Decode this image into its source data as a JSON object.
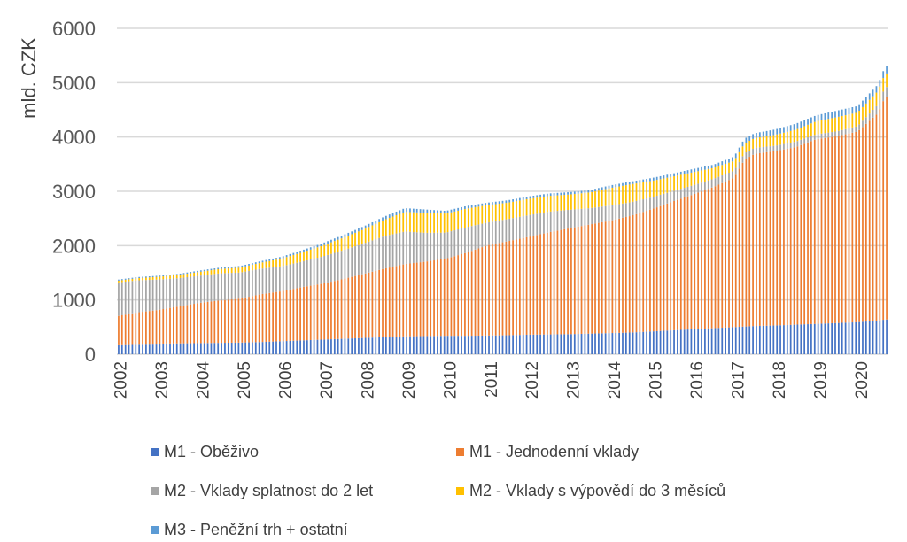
{
  "chart_data": {
    "type": "bar",
    "stacked": true,
    "ylabel": "mld. CZK",
    "xlabel": "",
    "ylim": [
      0,
      6000
    ],
    "yticks": [
      "0",
      "1000",
      "2000",
      "3000",
      "4000",
      "5000",
      "6000"
    ],
    "grid": true,
    "legend_position": "bottom",
    "x_tick_labels": [
      "2002",
      "2003",
      "2004",
      "2005",
      "2006",
      "2007",
      "2008",
      "2009",
      "2010",
      "2011",
      "2012",
      "2013",
      "2014",
      "2015",
      "2016",
      "2017",
      "2018",
      "2019",
      "2020"
    ],
    "x": [
      2002.0,
      2002.5,
      2003.0,
      2003.5,
      2004.0,
      2004.5,
      2005.0,
      2005.5,
      2006.0,
      2006.5,
      2007.0,
      2007.5,
      2008.0,
      2008.5,
      2009.0,
      2009.5,
      2010.0,
      2010.5,
      2011.0,
      2011.5,
      2012.0,
      2012.5,
      2013.0,
      2013.5,
      2014.0,
      2014.5,
      2015.0,
      2015.5,
      2016.0,
      2016.5,
      2017.0,
      2017.25,
      2017.5,
      2018.0,
      2018.5,
      2019.0,
      2019.5,
      2020.0,
      2020.5,
      2020.67
    ],
    "series": [
      {
        "name": "M1 - Oběživo",
        "color": "#4472C4",
        "values": [
          180,
          190,
          195,
          200,
          205,
          210,
          215,
          225,
          240,
          255,
          270,
          285,
          300,
          315,
          330,
          335,
          340,
          340,
          345,
          350,
          360,
          365,
          370,
          380,
          390,
          400,
          420,
          440,
          460,
          480,
          500,
          510,
          520,
          530,
          545,
          560,
          575,
          590,
          620,
          640
        ]
      },
      {
        "name": "M1 - Jednodenní vklady",
        "color": "#ED7D31",
        "values": [
          520,
          580,
          620,
          680,
          740,
          780,
          810,
          880,
          920,
          980,
          1030,
          1100,
          1180,
          1260,
          1330,
          1370,
          1420,
          1530,
          1660,
          1730,
          1800,
          1880,
          1950,
          2010,
          2070,
          2150,
          2250,
          2370,
          2480,
          2600,
          2750,
          3070,
          3170,
          3210,
          3270,
          3400,
          3440,
          3510,
          3820,
          4100
        ]
      },
      {
        "name": "M2 - Vklady splatnost do 2 let",
        "color": "#A5A5A5",
        "values": [
          620,
          590,
          560,
          520,
          500,
          500,
          480,
          470,
          460,
          470,
          500,
          530,
          560,
          600,
          600,
          530,
          480,
          470,
          420,
          410,
          400,
          380,
          340,
          300,
          280,
          250,
          220,
          190,
          170,
          150,
          130,
          120,
          110,
          100,
          100,
          90,
          90,
          100,
          160,
          180
        ]
      },
      {
        "name": "M2 - Vklady s výpovědí do 3 měsíců",
        "color": "#FFC000",
        "values": [
          30,
          40,
          50,
          60,
          70,
          80,
          90,
          110,
          140,
          170,
          200,
          230,
          260,
          300,
          360,
          370,
          350,
          340,
          320,
          300,
          300,
          290,
          280,
          290,
          320,
          330,
          300,
          270,
          240,
          200,
          180,
          180,
          180,
          200,
          220,
          240,
          260,
          250,
          250,
          250
        ]
      },
      {
        "name": "M3 - Peněžní trh + ostatní",
        "color": "#5B9BD5",
        "values": [
          20,
          20,
          20,
          20,
          25,
          25,
          30,
          30,
          35,
          40,
          45,
          50,
          55,
          60,
          70,
          60,
          50,
          50,
          45,
          45,
          45,
          45,
          45,
          45,
          50,
          50,
          55,
          55,
          60,
          60,
          80,
          90,
          90,
          100,
          110,
          110,
          120,
          120,
          120,
          130
        ]
      }
    ]
  }
}
